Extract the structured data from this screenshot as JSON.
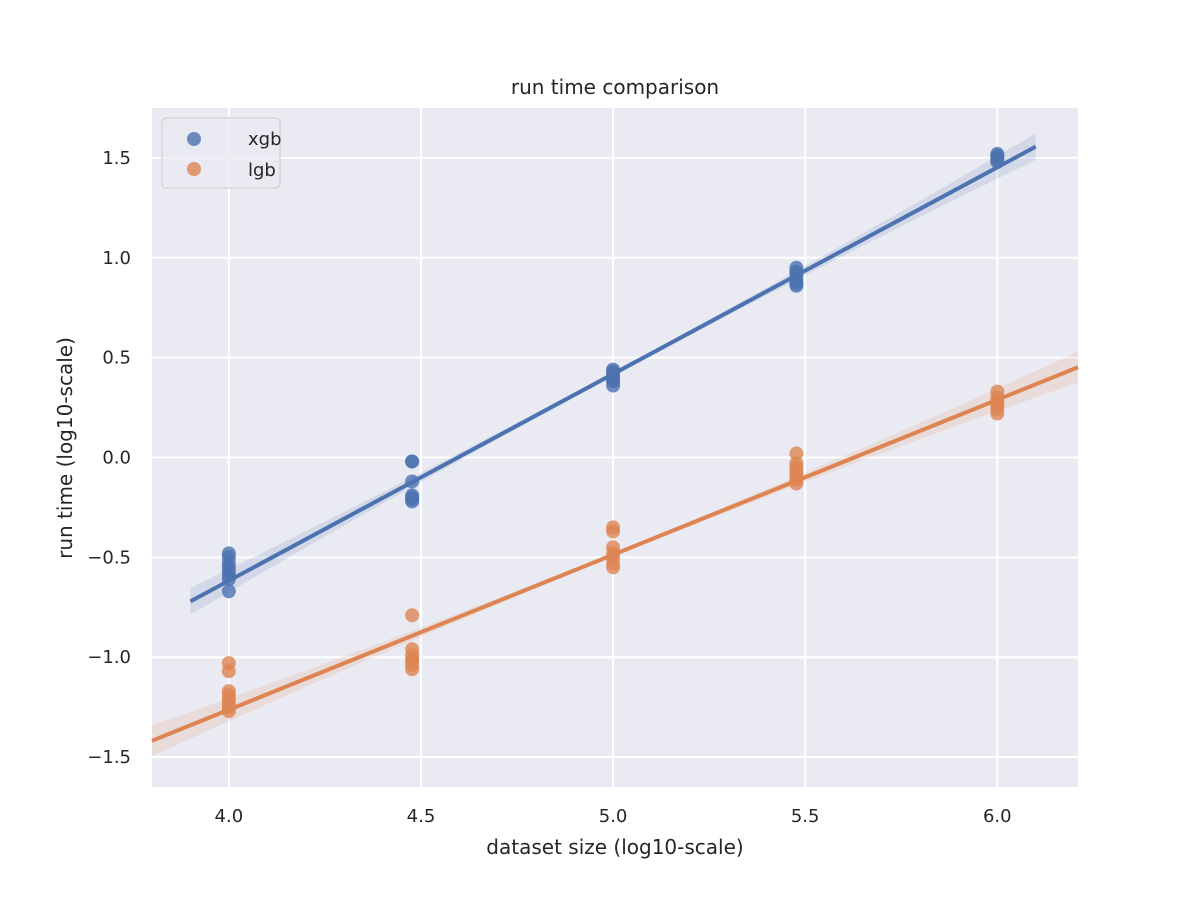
{
  "chart_data": {
    "type": "scatter",
    "title": "run time comparison",
    "xlabel": "dataset size (log10-scale)",
    "ylabel": "run time (log10-scale)",
    "xlim": [
      3.8,
      6.21
    ],
    "ylim": [
      -1.65,
      1.75
    ],
    "xticks": [
      4.0,
      4.5,
      5.0,
      5.5,
      6.0
    ],
    "xtick_labels": [
      "4.0",
      "4.5",
      "5.0",
      "5.5",
      "6.0"
    ],
    "yticks": [
      -1.5,
      -1.0,
      -0.5,
      0.0,
      0.5,
      1.0,
      1.5
    ],
    "ytick_labels": [
      "−1.5",
      "−1.0",
      "−0.5",
      "0.0",
      "0.5",
      "1.0",
      "1.5"
    ],
    "grid": true,
    "legend_position": "top-left",
    "series": [
      {
        "name": "xgb",
        "color": "#4c72b0",
        "points": [
          [
            4.0,
            -0.48
          ],
          [
            4.0,
            -0.5
          ],
          [
            4.0,
            -0.53
          ],
          [
            4.0,
            -0.55
          ],
          [
            4.0,
            -0.57
          ],
          [
            4.0,
            -0.59
          ],
          [
            4.0,
            -0.61
          ],
          [
            4.0,
            -0.67
          ],
          [
            4.477,
            -0.02
          ],
          [
            4.477,
            -0.02
          ],
          [
            4.477,
            -0.12
          ],
          [
            4.477,
            -0.19
          ],
          [
            4.477,
            -0.2
          ],
          [
            4.477,
            -0.21
          ],
          [
            4.477,
            -0.22
          ],
          [
            5.0,
            0.44
          ],
          [
            5.0,
            0.43
          ],
          [
            5.0,
            0.42
          ],
          [
            5.0,
            0.4
          ],
          [
            5.0,
            0.39
          ],
          [
            5.0,
            0.38
          ],
          [
            5.0,
            0.36
          ],
          [
            5.477,
            0.95
          ],
          [
            5.477,
            0.93
          ],
          [
            5.477,
            0.92
          ],
          [
            5.477,
            0.9
          ],
          [
            5.477,
            0.88
          ],
          [
            5.477,
            0.87
          ],
          [
            5.477,
            0.86
          ],
          [
            6.0,
            1.52
          ],
          [
            6.0,
            1.51
          ],
          [
            6.0,
            1.5
          ],
          [
            6.0,
            1.49
          ],
          [
            6.0,
            1.48
          ]
        ],
        "fit": {
          "x_range": [
            3.9,
            6.1
          ],
          "slope": 1.035,
          "intercept": -4.757
        }
      },
      {
        "name": "lgb",
        "color": "#dd8452",
        "points": [
          [
            4.0,
            -1.03
          ],
          [
            4.0,
            -1.07
          ],
          [
            4.0,
            -1.17
          ],
          [
            4.0,
            -1.19
          ],
          [
            4.0,
            -1.21
          ],
          [
            4.0,
            -1.23
          ],
          [
            4.0,
            -1.25
          ],
          [
            4.0,
            -1.27
          ],
          [
            4.477,
            -0.79
          ],
          [
            4.477,
            -0.96
          ],
          [
            4.477,
            -0.99
          ],
          [
            4.477,
            -1.01
          ],
          [
            4.477,
            -1.02
          ],
          [
            4.477,
            -1.04
          ],
          [
            4.477,
            -1.06
          ],
          [
            5.0,
            -0.35
          ],
          [
            5.0,
            -0.37
          ],
          [
            5.0,
            -0.45
          ],
          [
            5.0,
            -0.48
          ],
          [
            5.0,
            -0.5
          ],
          [
            5.0,
            -0.53
          ],
          [
            5.0,
            -0.55
          ],
          [
            5.477,
            0.02
          ],
          [
            5.477,
            -0.03
          ],
          [
            5.477,
            -0.05
          ],
          [
            5.477,
            -0.07
          ],
          [
            5.477,
            -0.09
          ],
          [
            5.477,
            -0.11
          ],
          [
            5.477,
            -0.13
          ],
          [
            6.0,
            0.33
          ],
          [
            6.0,
            0.3
          ],
          [
            6.0,
            0.28
          ],
          [
            6.0,
            0.26
          ],
          [
            6.0,
            0.24
          ],
          [
            6.0,
            0.22
          ]
        ],
        "fit": {
          "x_range": [
            3.8,
            6.21
          ],
          "slope": 0.776,
          "intercept": -4.367
        }
      }
    ]
  }
}
